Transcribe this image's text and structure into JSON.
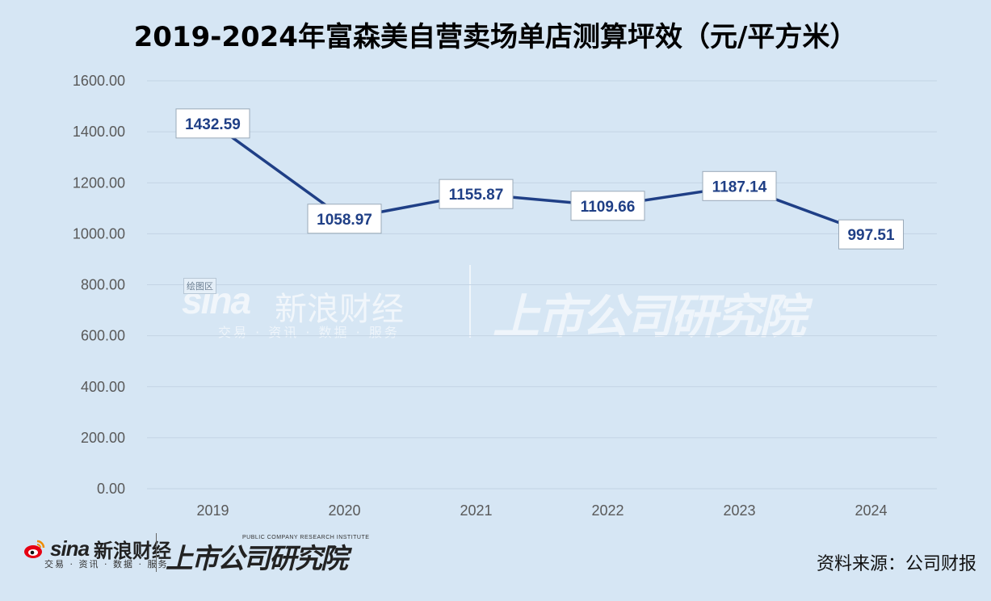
{
  "chart_data": {
    "type": "line",
    "title": "2019-2024年富森美自营卖场单店测算坪效（元/平方米）",
    "categories": [
      "2019",
      "2020",
      "2021",
      "2022",
      "2023",
      "2024"
    ],
    "series": [
      {
        "values": [
          1432.59,
          1058.97,
          1155.87,
          1109.66,
          1187.14,
          997.51
        ],
        "labels": [
          "1432.59",
          "1058.97",
          "1155.87",
          "1109.66",
          "1187.14",
          "997.51"
        ]
      }
    ],
    "ylim": [
      0,
      1600
    ],
    "y_ticks": [
      "0.00",
      "200.00",
      "400.00",
      "600.00",
      "800.00",
      "1000.00",
      "1200.00",
      "1400.00",
      "1600.00"
    ],
    "y_tick_values": [
      0,
      200,
      400,
      600,
      800,
      1000,
      1200,
      1400,
      1600
    ],
    "grid": true,
    "legend": "none",
    "line_color": "#1f3f86"
  },
  "branding": {
    "sina_word": "sina",
    "sina_cn": "新浪财经",
    "sina_sub": "交易 · 资讯 · 数据 · 服务",
    "institute": "上市公司研究院",
    "institute_en": "PUBLIC COMPANY RESEARCH INSTITUTE"
  },
  "plot_area_label": "绘图区",
  "source": "资料来源：公司财报",
  "colors": {
    "background": "#d6e6f4",
    "line": "#1f3f86",
    "label_text": "#1f3f86"
  }
}
